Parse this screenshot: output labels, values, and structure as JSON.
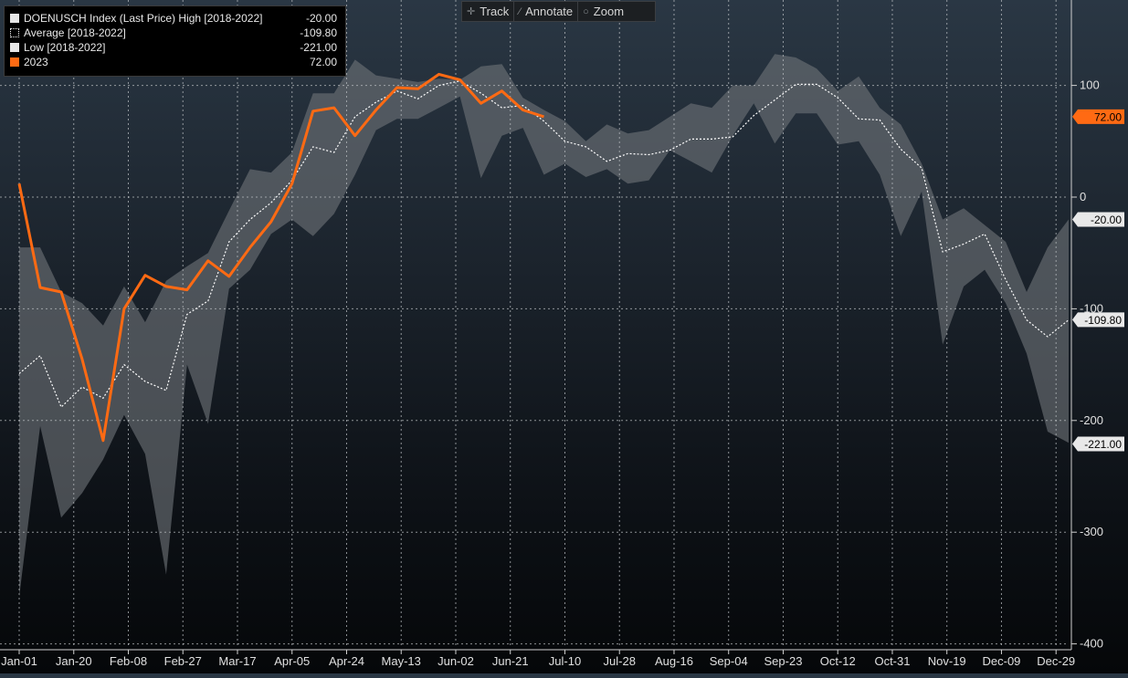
{
  "legend": {
    "items": [
      {
        "label": "DOENUSCH Index (Last Price) High [2018-2022]",
        "value": "-20.00",
        "swatch": "#e6e6e6",
        "style": "solid"
      },
      {
        "label": "Average  [2018-2022]",
        "value": "-109.80",
        "swatch": "#ffffff",
        "style": "dotted"
      },
      {
        "label": "Low  [2018-2022]",
        "value": "-221.00",
        "swatch": "#e6e6e6",
        "style": "solid"
      },
      {
        "label": "2023",
        "value": "72.00",
        "swatch": "#ff6a13",
        "style": "solid"
      }
    ]
  },
  "toolbar": {
    "track_label": "Track",
    "track_icon": "crosshair-icon",
    "annotate_label": "Annotate",
    "annotate_icon": "pencil-icon",
    "zoom_label": "Zoom",
    "zoom_icon": "magnifier-icon"
  },
  "chart_data": {
    "type": "area",
    "title": "",
    "xlabel": "",
    "ylabel": "",
    "ylim": [
      -400,
      180
    ],
    "yticks": [
      100,
      0,
      -100,
      -200,
      -300,
      -400
    ],
    "grid": true,
    "legend_position": "top-left",
    "x_tick_labels": [
      "Jan-01",
      "Jan-20",
      "Feb-08",
      "Feb-27",
      "Mar-17",
      "Apr-05",
      "Apr-24",
      "May-13",
      "Jun-02",
      "Jun-21",
      "Jul-10",
      "Jul-28",
      "Aug-16",
      "Sep-04",
      "Sep-23",
      "Oct-12",
      "Oct-31",
      "Nov-19",
      "Dec-09",
      "Dec-29"
    ],
    "colors": {
      "band": "#6e7378",
      "average": "#ffffff",
      "series_2023": "#ff6a13",
      "grid": "#b8bcc0",
      "value_tag": "#e8e8e8",
      "tag_2023": "#ff6a13"
    },
    "value_tags": [
      {
        "label": "72.00",
        "value": 72,
        "series": "2023"
      },
      {
        "label": "-20.00",
        "value": -20,
        "series": "High"
      },
      {
        "label": "-109.80",
        "value": -109.8,
        "series": "Average"
      },
      {
        "label": "-221.00",
        "value": -221,
        "series": "Low"
      }
    ],
    "series": [
      {
        "name": "High [2018-2022]",
        "values": [
          -45,
          -45,
          -85,
          -95,
          -115,
          -80,
          -112,
          -75,
          -62,
          -50,
          -12,
          25,
          22,
          40,
          93,
          93,
          123,
          109,
          106,
          103,
          106,
          105,
          117,
          119,
          89,
          78,
          68,
          50,
          65,
          57,
          60,
          72,
          84,
          80,
          100,
          100,
          128,
          125,
          115,
          95,
          108,
          80,
          65,
          30,
          -20,
          -10,
          -25,
          -40,
          -85,
          -45,
          -20
        ]
      },
      {
        "name": "Average [2018-2022]",
        "values": [
          -158,
          -142,
          -188,
          -170,
          -180,
          -150,
          -165,
          -173,
          -105,
          -93,
          -40,
          -20,
          -5,
          15,
          45,
          40,
          72,
          85,
          95,
          88,
          100,
          104,
          93,
          80,
          82,
          68,
          50,
          45,
          32,
          39,
          38,
          42,
          52,
          52,
          54,
          73,
          87,
          101,
          101,
          89,
          70,
          69,
          43,
          26,
          -49,
          -42,
          -33,
          -74,
          -110,
          -125,
          -110
        ]
      },
      {
        "name": "Low [2018-2022]",
        "values": [
          -358,
          -205,
          -287,
          -265,
          -235,
          -195,
          -230,
          -338,
          -150,
          -203,
          -82,
          -65,
          -33,
          -20,
          -35,
          -15,
          20,
          60,
          70,
          70,
          80,
          90,
          17,
          55,
          62,
          20,
          30,
          18,
          25,
          12,
          15,
          42,
          32,
          22,
          55,
          84,
          48,
          75,
          75,
          47,
          50,
          20,
          -35,
          5,
          -132,
          -80,
          -65,
          -95,
          -140,
          -210,
          -220
        ]
      },
      {
        "name": "2023",
        "values": [
          12,
          -81,
          -85,
          -145,
          -218,
          -100,
          -70,
          -80,
          -83,
          -57,
          -71,
          -45,
          -22,
          12,
          77,
          80,
          55,
          78,
          98,
          97,
          110,
          105,
          84,
          95,
          78,
          72
        ]
      }
    ]
  }
}
